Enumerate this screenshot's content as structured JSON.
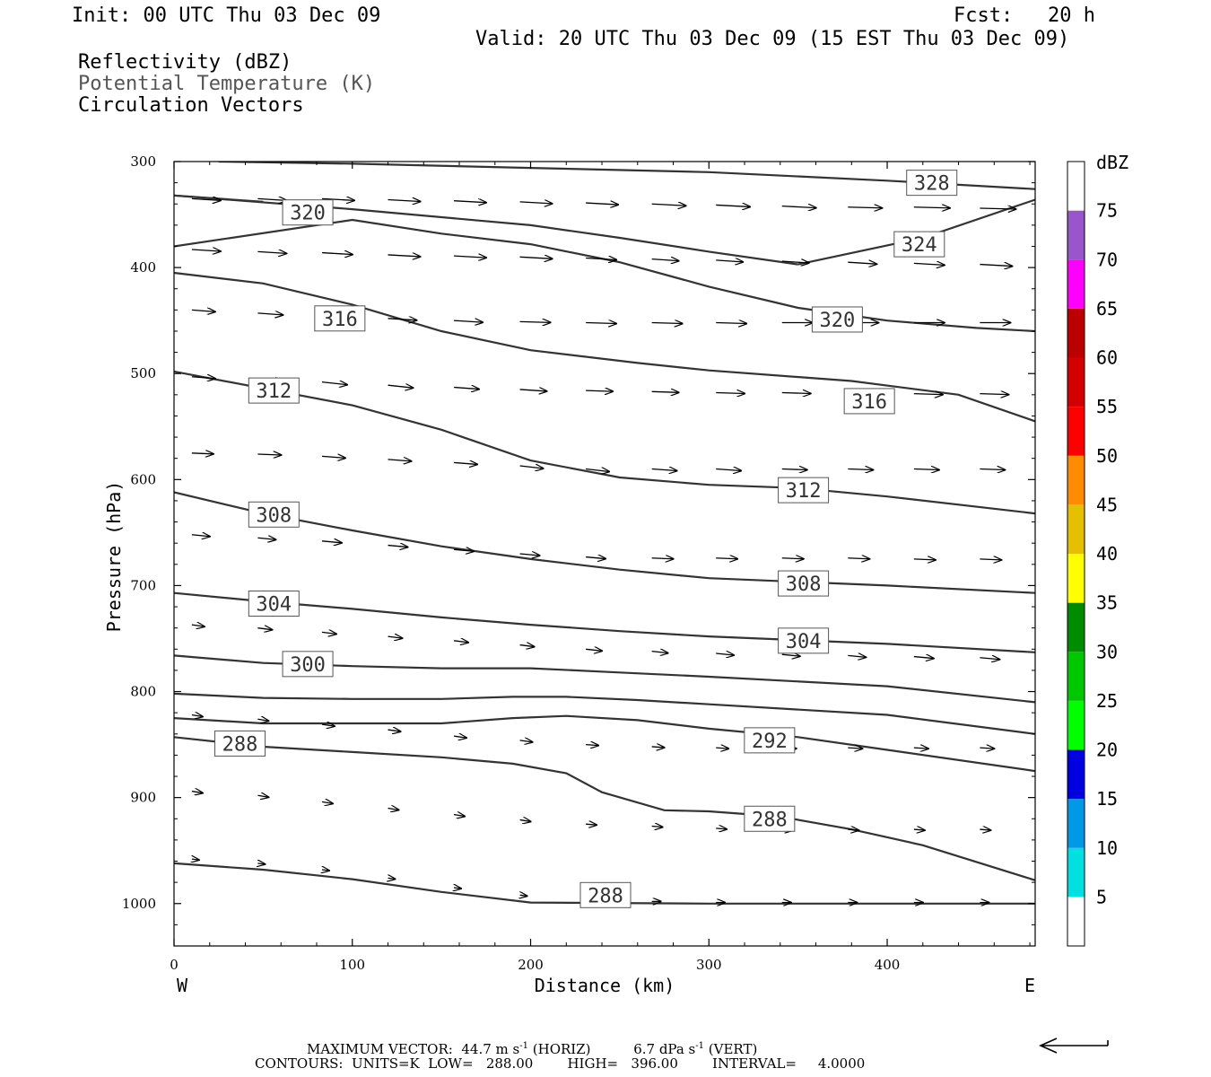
{
  "header": {
    "init": "Init: 00 UTC Thu 03 Dec 09",
    "fcst_label": "Fcst:",
    "fcst_value": "20 h",
    "valid": "Valid: 20 UTC Thu 03 Dec 09 (15 EST Thu 03 Dec 09)",
    "legend": [
      {
        "text": "Reflectivity (dBZ)",
        "color": "#000000"
      },
      {
        "text": "Potential Temperature (K)",
        "color": "#555555"
      },
      {
        "text": "Circulation Vectors",
        "color": "#000000"
      }
    ]
  },
  "chart_data": {
    "type": "line",
    "xlabel": "Distance (km)",
    "ylabel": "Pressure (hPa)",
    "xlim": [
      0,
      483
    ],
    "ylim": [
      1040,
      300
    ],
    "x_ticks": [
      0,
      100,
      200,
      300,
      400
    ],
    "y_ticks": [
      300,
      400,
      500,
      600,
      700,
      800,
      900,
      1000
    ],
    "left_end_label": "W",
    "right_end_label": "E",
    "isentropes": [
      {
        "points": [
          [
            25,
            300
          ],
          [
            100,
            302
          ],
          [
            200,
            306
          ],
          [
            300,
            310
          ],
          [
            400,
            318
          ],
          [
            483,
            326
          ]
        ],
        "labels": [
          {
            "text": "328",
            "x": 425,
            "y": 320
          }
        ]
      },
      {
        "points": [
          [
            0,
            332
          ],
          [
            100,
            345
          ],
          [
            200,
            360
          ],
          [
            250,
            372
          ],
          [
            300,
            385
          ],
          [
            350,
            397
          ]
        ],
        "labels": [
          {
            "text": "320",
            "x": 75,
            "y": 348
          }
        ]
      },
      {
        "points": [
          [
            350,
            397
          ],
          [
            420,
            372
          ],
          [
            483,
            336
          ]
        ],
        "labels": []
      },
      {
        "points": [
          [
            0,
            332
          ],
          [
            50,
            338
          ]
        ],
        "labels": []
      },
      {
        "points": [
          [
            0,
            405
          ],
          [
            50,
            415
          ],
          [
            100,
            435
          ],
          [
            150,
            460
          ],
          [
            200,
            478
          ],
          [
            260,
            490
          ],
          [
            300,
            497
          ],
          [
            380,
            507
          ],
          [
            440,
            520
          ],
          [
            483,
            545
          ]
        ],
        "labels": [
          {
            "text": "316",
            "x": 93,
            "y": 448
          },
          {
            "text": "316",
            "x": 390,
            "y": 526
          }
        ]
      },
      {
        "points": [
          [
            0,
            380
          ],
          [
            100,
            355
          ],
          [
            150,
            368
          ],
          [
            200,
            378
          ],
          [
            250,
            395
          ],
          [
            300,
            418
          ],
          [
            350,
            438
          ],
          [
            400,
            450
          ],
          [
            450,
            457
          ],
          [
            483,
            460
          ]
        ],
        "labels": [
          {
            "text": "324",
            "x": 418,
            "y": 378
          },
          {
            "text": "320",
            "x": 372,
            "y": 449
          }
        ]
      },
      {
        "points": [
          [
            0,
            498
          ],
          [
            100,
            530
          ],
          [
            150,
            553
          ],
          [
            200,
            582
          ],
          [
            250,
            598
          ],
          [
            300,
            605
          ],
          [
            350,
            608
          ],
          [
            400,
            616
          ],
          [
            483,
            632
          ]
        ],
        "labels": [
          {
            "text": "312",
            "x": 56,
            "y": 516
          },
          {
            "text": "312",
            "x": 353,
            "y": 610
          }
        ]
      },
      {
        "points": [
          [
            0,
            612
          ],
          [
            50,
            632
          ],
          [
            100,
            648
          ],
          [
            150,
            663
          ],
          [
            200,
            675
          ],
          [
            250,
            685
          ],
          [
            300,
            693
          ],
          [
            400,
            700
          ],
          [
            483,
            707
          ]
        ],
        "labels": [
          {
            "text": "308",
            "x": 56,
            "y": 633
          },
          {
            "text": "308",
            "x": 353,
            "y": 698
          }
        ]
      },
      {
        "points": [
          [
            0,
            707
          ],
          [
            50,
            715
          ],
          [
            100,
            722
          ],
          [
            150,
            730
          ],
          [
            200,
            737
          ],
          [
            250,
            743
          ],
          [
            300,
            748
          ],
          [
            400,
            755
          ],
          [
            483,
            763
          ]
        ],
        "labels": [
          {
            "text": "304",
            "x": 56,
            "y": 717
          },
          {
            "text": "304",
            "x": 353,
            "y": 752
          }
        ]
      },
      {
        "points": [
          [
            0,
            766
          ],
          [
            50,
            773
          ],
          [
            100,
            776
          ],
          [
            150,
            778
          ],
          [
            200,
            778
          ],
          [
            250,
            782
          ],
          [
            300,
            786
          ],
          [
            400,
            795
          ],
          [
            483,
            810
          ]
        ],
        "labels": [
          {
            "text": "300",
            "x": 75,
            "y": 774
          }
        ]
      },
      {
        "points": [
          [
            0,
            802
          ],
          [
            50,
            806
          ],
          [
            100,
            807
          ],
          [
            150,
            807
          ],
          [
            190,
            805
          ],
          [
            220,
            805
          ],
          [
            260,
            808
          ],
          [
            300,
            812
          ],
          [
            400,
            822
          ],
          [
            483,
            840
          ]
        ],
        "labels": []
      },
      {
        "points": [
          [
            0,
            825
          ],
          [
            50,
            830
          ],
          [
            100,
            830
          ],
          [
            150,
            830
          ],
          [
            190,
            825
          ],
          [
            220,
            823
          ],
          [
            260,
            827
          ],
          [
            300,
            835
          ],
          [
            350,
            843
          ],
          [
            400,
            855
          ],
          [
            483,
            875
          ]
        ],
        "labels": [
          {
            "text": "292",
            "x": 334,
            "y": 846
          }
        ]
      },
      {
        "points": [
          [
            0,
            843
          ],
          [
            50,
            852
          ],
          [
            100,
            857
          ],
          [
            150,
            862
          ],
          [
            190,
            868
          ],
          [
            220,
            877
          ],
          [
            240,
            895
          ],
          [
            275,
            912
          ],
          [
            300,
            913
          ],
          [
            340,
            918
          ],
          [
            380,
            930
          ],
          [
            420,
            945
          ],
          [
            483,
            978
          ]
        ],
        "labels": [
          {
            "text": "288",
            "x": 37,
            "y": 849
          },
          {
            "text": "288",
            "x": 334,
            "y": 920
          }
        ]
      },
      {
        "points": [
          [
            0,
            962
          ],
          [
            50,
            968
          ],
          [
            100,
            977
          ],
          [
            150,
            989
          ],
          [
            200,
            999
          ],
          [
            300,
            1000
          ],
          [
            483,
            1000
          ]
        ],
        "labels": [
          {
            "text": "288",
            "x": 242,
            "y": 992
          }
        ]
      }
    ],
    "vector_rows": [
      {
        "p": 333,
        "y_start": [
          335,
          335,
          335,
          336,
          337,
          338,
          339,
          340,
          341,
          342,
          343,
          343,
          344
        ],
        "dx": [
          32,
          32,
          36,
          36,
          36,
          36,
          36,
          38,
          38,
          38,
          38,
          40,
          40
        ],
        "dy": [
          2,
          2,
          2,
          2,
          2,
          2,
          2,
          2,
          2,
          2,
          1,
          1,
          1
        ]
      },
      {
        "p": 385,
        "y_start": [
          383,
          385,
          386,
          388,
          389,
          390,
          391,
          392,
          393,
          394,
          395,
          396,
          397
        ],
        "dx": [
          32,
          32,
          34,
          36,
          36,
          36,
          34,
          30,
          30,
          30,
          32,
          34,
          36
        ],
        "dy": [
          2,
          2,
          2,
          2,
          2,
          2,
          2,
          2,
          2,
          2,
          2,
          2,
          2
        ]
      },
      {
        "p": 445,
        "y_start": [
          440,
          443,
          446,
          448,
          450,
          451,
          452,
          452,
          452,
          452,
          452,
          452,
          452
        ],
        "dx": [
          26,
          28,
          30,
          32,
          32,
          34,
          34,
          34,
          34,
          34,
          34,
          34,
          34
        ],
        "dy": [
          2,
          2,
          3,
          2,
          2,
          1,
          1,
          1,
          1,
          0,
          0,
          0,
          0
        ]
      },
      {
        "p": 512,
        "y_start": [
          503,
          505,
          508,
          511,
          513,
          515,
          516,
          517,
          518,
          518,
          519,
          519,
          519
        ],
        "dx": [
          26,
          28,
          28,
          28,
          28,
          30,
          30,
          30,
          32,
          32,
          32,
          32,
          32
        ],
        "dy": [
          2,
          3,
          3,
          3,
          2,
          2,
          1,
          1,
          1,
          1,
          1,
          1,
          1
        ]
      },
      {
        "p": 582,
        "y_start": [
          575,
          576,
          578,
          581,
          584,
          587,
          590,
          590,
          590,
          590,
          590,
          590,
          590
        ],
        "dx": [
          24,
          26,
          26,
          26,
          26,
          26,
          26,
          28,
          28,
          28,
          28,
          28,
          28
        ],
        "dy": [
          1,
          1,
          2,
          2,
          2,
          3,
          3,
          2,
          2,
          1,
          1,
          1,
          1
        ]
      },
      {
        "p": 665,
        "y_start": [
          652,
          655,
          658,
          662,
          666,
          670,
          673,
          674,
          674,
          674,
          674,
          675,
          675
        ],
        "dx": [
          20,
          20,
          22,
          22,
          22,
          22,
          22,
          24,
          24,
          24,
          24,
          24,
          24
        ],
        "dy": [
          2,
          2,
          2,
          2,
          2,
          2,
          2,
          1,
          1,
          1,
          1,
          1,
          1
        ]
      },
      {
        "p": 752,
        "y_start": [
          737,
          740,
          744,
          748,
          752,
          756,
          760,
          762,
          764,
          765,
          766,
          767,
          768
        ],
        "dx": [
          14,
          16,
          16,
          16,
          16,
          16,
          18,
          18,
          20,
          20,
          20,
          22,
          22
        ],
        "dy": [
          2,
          2,
          2,
          2,
          2,
          2,
          2,
          2,
          2,
          2,
          2,
          2,
          2
        ]
      },
      {
        "p": 845,
        "y_start": [
          822,
          826,
          831,
          836,
          842,
          846,
          850,
          852,
          853,
          853,
          853,
          853,
          853
        ],
        "dx": [
          12,
          12,
          14,
          14,
          14,
          14,
          14,
          14,
          14,
          16,
          16,
          16,
          16
        ],
        "dy": [
          2,
          2,
          2,
          2,
          2,
          2,
          1,
          1,
          1,
          1,
          1,
          1,
          1
        ]
      },
      {
        "p": 920,
        "y_start": [
          894,
          898,
          904,
          910,
          916,
          921,
          925,
          927,
          929,
          930,
          930,
          930,
          930
        ],
        "dx": [
          12,
          12,
          12,
          12,
          12,
          12,
          12,
          12,
          12,
          12,
          12,
          12,
          12
        ],
        "dy": [
          2,
          2,
          2,
          2,
          2,
          2,
          1,
          1,
          1,
          1,
          1,
          1,
          1
        ]
      },
      {
        "p": 990,
        "y_start": [
          958,
          962,
          968,
          976,
          985,
          992,
          996,
          998,
          999,
          999,
          999,
          999,
          999
        ],
        "dx": [
          8,
          8,
          8,
          8,
          8,
          8,
          10,
          10,
          10,
          10,
          10,
          10,
          10
        ],
        "dy": [
          1,
          1,
          1,
          1,
          1,
          1,
          1,
          0,
          0,
          0,
          0,
          0,
          0
        ]
      }
    ],
    "vector_x": [
      10,
      47,
      83,
      120,
      157,
      194,
      231,
      268,
      304,
      341,
      378,
      415,
      452
    ],
    "colorbar": {
      "title": "dBZ",
      "levels": [
        5,
        10,
        15,
        20,
        25,
        30,
        35,
        40,
        45,
        50,
        55,
        60,
        65,
        70,
        75
      ],
      "colors": [
        "#ffffff",
        "#00e0e0",
        "#0099e6",
        "#0000e0",
        "#00ff00",
        "#00c800",
        "#008c00",
        "#ffff00",
        "#e6c000",
        "#ff8c00",
        "#ff0000",
        "#d40000",
        "#bc0000",
        "#ff00ff",
        "#9955cc",
        "#ffffff"
      ]
    }
  },
  "footer": {
    "max_vector_label": "MAXIMUM VECTOR:",
    "max_vector_horiz": "44.7 m s",
    "max_vector_horiz_exp": "-1",
    "max_vector_horiz_tag": "(HORIZ)",
    "max_vector_vert": "6.7 dPa s",
    "max_vector_vert_exp": "-1",
    "max_vector_vert_tag": "(VERT)",
    "contours": "CONTOURS:  UNITS=K  LOW=   288.00        HIGH=   396.00        INTERVAL=     4.0000"
  }
}
